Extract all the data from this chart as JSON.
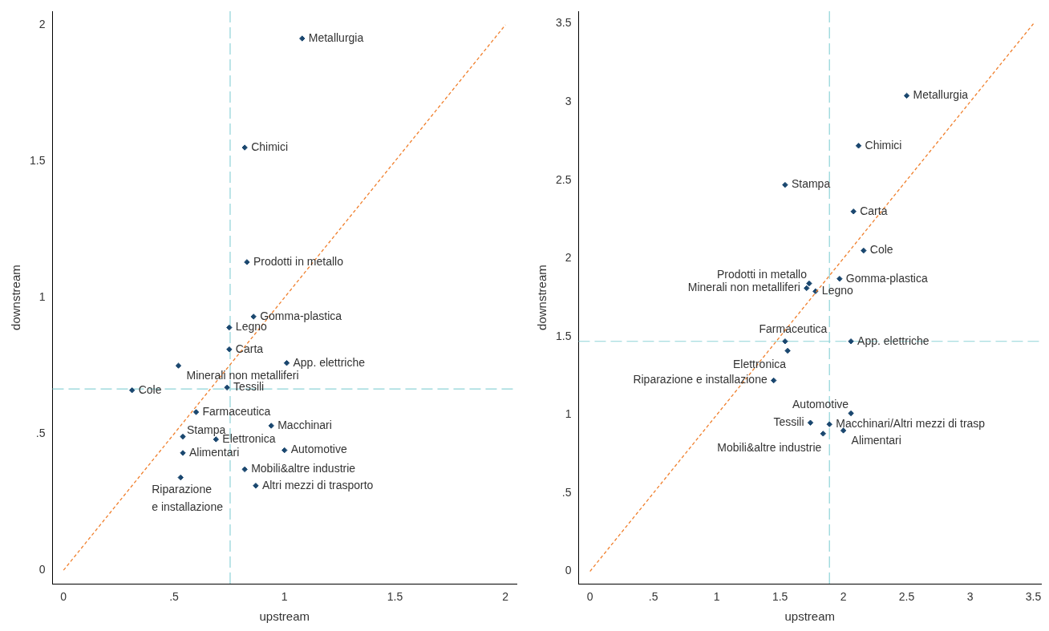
{
  "chart_data": [
    {
      "type": "scatter",
      "xlabel": "upstream",
      "ylabel": "downstream",
      "xlim": [
        -0.05,
        2.05
      ],
      "ylim": [
        -0.05,
        2.05
      ],
      "xticks": [
        0,
        {
          "value": 0.5,
          "label": ".5"
        },
        1,
        1.5,
        2
      ],
      "yticks": [
        0,
        {
          "value": 0.5,
          "label": ".5"
        },
        1,
        1.5,
        2
      ],
      "legend": false,
      "marker": "diamond",
      "ref_lines": [
        {
          "axis": "x",
          "value": 0.754,
          "color": "#8fd3d8",
          "line_style": "dashed"
        },
        {
          "axis": "y",
          "value": 0.665,
          "color": "#8fd3d8",
          "line_style": "dashed"
        }
      ],
      "series": [
        {
          "type": "line",
          "color": "#f07f2c",
          "line_style": "dotted",
          "marker": "none",
          "x": [
            0,
            2
          ],
          "values": [
            0,
            2
          ]
        },
        {
          "name": "Metallurgia",
          "color": "#1a476f",
          "x": [
            1.08
          ],
          "values": [
            1.95
          ]
        },
        {
          "name": "Chimici",
          "color": "#1a476f",
          "x": [
            0.82
          ],
          "values": [
            1.55
          ]
        },
        {
          "name": "Prodotti in metallo",
          "color": "#1a476f",
          "x": [
            0.83
          ],
          "values": [
            1.13
          ]
        },
        {
          "name": "Gomma-plastica",
          "color": "#1a476f",
          "x": [
            0.86
          ],
          "values": [
            0.93
          ]
        },
        {
          "name": "Legno",
          "color": "#1a476f",
          "x": [
            0.75
          ],
          "values": [
            0.89
          ]
        },
        {
          "name": "Carta",
          "color": "#1a476f",
          "x": [
            0.75
          ],
          "values": [
            0.81
          ]
        },
        {
          "name": "App. elettriche",
          "color": "#1a476f",
          "x": [
            1.01
          ],
          "values": [
            0.76
          ]
        },
        {
          "name": "Minerali non metalliferi",
          "color": "#1a476f",
          "x": [
            0.52
          ],
          "values": [
            0.75
          ]
        },
        {
          "name": "Cole",
          "color": "#1a476f",
          "x": [
            0.31
          ],
          "values": [
            0.66
          ]
        },
        {
          "name": "Tessili",
          "color": "#1a476f",
          "x": [
            0.74
          ],
          "values": [
            0.67
          ]
        },
        {
          "name": "Farmaceutica",
          "color": "#1a476f",
          "x": [
            0.6
          ],
          "values": [
            0.58
          ]
        },
        {
          "name": "Macchinari",
          "color": "#1a476f",
          "x": [
            0.94
          ],
          "values": [
            0.53
          ]
        },
        {
          "name": "Stampa",
          "color": "#1a476f",
          "x": [
            0.54
          ],
          "values": [
            0.49
          ]
        },
        {
          "name": "Elettronica",
          "color": "#1a476f",
          "x": [
            0.69
          ],
          "values": [
            0.48
          ]
        },
        {
          "name": "Automotive",
          "color": "#1a476f",
          "x": [
            1.0
          ],
          "values": [
            0.44
          ]
        },
        {
          "name": "Alimentari",
          "color": "#1a476f",
          "x": [
            0.54
          ],
          "values": [
            0.43
          ]
        },
        {
          "name": "Mobili&altre industrie",
          "color": "#1a476f",
          "x": [
            0.82
          ],
          "values": [
            0.37
          ]
        },
        {
          "name": "Altri mezzi di trasporto",
          "color": "#1a476f",
          "x": [
            0.87
          ],
          "values": [
            0.31
          ]
        },
        {
          "name": "Riparazione e installazione",
          "color": "#1a476f",
          "x": [
            0.53
          ],
          "values": [
            0.34
          ]
        }
      ]
    },
    {
      "type": "scatter",
      "xlabel": "upstream",
      "ylabel": "downstream",
      "xlim": [
        -0.09,
        3.56
      ],
      "ylim": [
        -0.08,
        3.58
      ],
      "xticks": [
        0,
        {
          "value": 0.5,
          "label": ".5"
        },
        1,
        1.5,
        2,
        2.5,
        3,
        3.5
      ],
      "yticks": [
        0,
        {
          "value": 0.5,
          "label": ".5"
        },
        1,
        1.5,
        2,
        2.5,
        3,
        3.5
      ],
      "legend": false,
      "marker": "diamond",
      "ref_lines": [
        {
          "axis": "x",
          "value": 1.89,
          "color": "#8fd3d8",
          "line_style": "dashed"
        },
        {
          "axis": "y",
          "value": 1.47,
          "color": "#8fd3d8",
          "line_style": "dashed"
        }
      ],
      "series": [
        {
          "type": "line",
          "color": "#f07f2c",
          "line_style": "dotted",
          "marker": "none",
          "x": [
            0,
            3.5
          ],
          "values": [
            0,
            3.5
          ]
        },
        {
          "name": "Metallurgia",
          "color": "#1a476f",
          "x": [
            2.5
          ],
          "values": [
            3.04
          ]
        },
        {
          "name": "Chimici",
          "color": "#1a476f",
          "x": [
            2.12
          ],
          "values": [
            2.72
          ]
        },
        {
          "name": "Stampa",
          "color": "#1a476f",
          "x": [
            1.54
          ],
          "values": [
            2.47
          ]
        },
        {
          "name": "Carta",
          "color": "#1a476f",
          "x": [
            2.08
          ],
          "values": [
            2.3
          ]
        },
        {
          "name": "Cole",
          "color": "#1a476f",
          "x": [
            2.16
          ],
          "values": [
            2.05
          ]
        },
        {
          "name": "Prodotti in metallo",
          "color": "#1a476f",
          "x": [
            1.73
          ],
          "values": [
            1.84
          ]
        },
        {
          "name": "Gomma-plastica",
          "color": "#1a476f",
          "x": [
            1.97
          ],
          "values": [
            1.87
          ]
        },
        {
          "name": "Minerali non metalliferi",
          "color": "#1a476f",
          "x": [
            1.71
          ],
          "values": [
            1.81
          ]
        },
        {
          "name": "Legno",
          "color": "#1a476f",
          "x": [
            1.78
          ],
          "values": [
            1.79
          ]
        },
        {
          "name": "Farmaceutica",
          "color": "#1a476f",
          "x": [
            1.54
          ],
          "values": [
            1.47
          ]
        },
        {
          "name": "App. elettriche",
          "color": "#1a476f",
          "x": [
            2.06
          ],
          "values": [
            1.47
          ]
        },
        {
          "name": "Elettronica",
          "color": "#1a476f",
          "x": [
            1.56
          ],
          "values": [
            1.41
          ]
        },
        {
          "name": "Riparazione e installazione",
          "color": "#1a476f",
          "x": [
            1.45
          ],
          "values": [
            1.22
          ]
        },
        {
          "name": "Automotive",
          "color": "#1a476f",
          "x": [
            2.06
          ],
          "values": [
            1.01
          ]
        },
        {
          "name": "Tessili",
          "color": "#1a476f",
          "x": [
            1.74
          ],
          "values": [
            0.95
          ]
        },
        {
          "name": "Macchinari/Altri mezzi di trasp",
          "color": "#1a476f",
          "x": [
            1.89
          ],
          "values": [
            0.94
          ]
        },
        {
          "name": "Alimentari",
          "color": "#1a476f",
          "x": [
            2.0
          ],
          "values": [
            0.9
          ]
        },
        {
          "name": "Mobili&altre industrie",
          "color": "#1a476f",
          "x": [
            1.84
          ],
          "values": [
            0.88
          ]
        }
      ]
    }
  ]
}
